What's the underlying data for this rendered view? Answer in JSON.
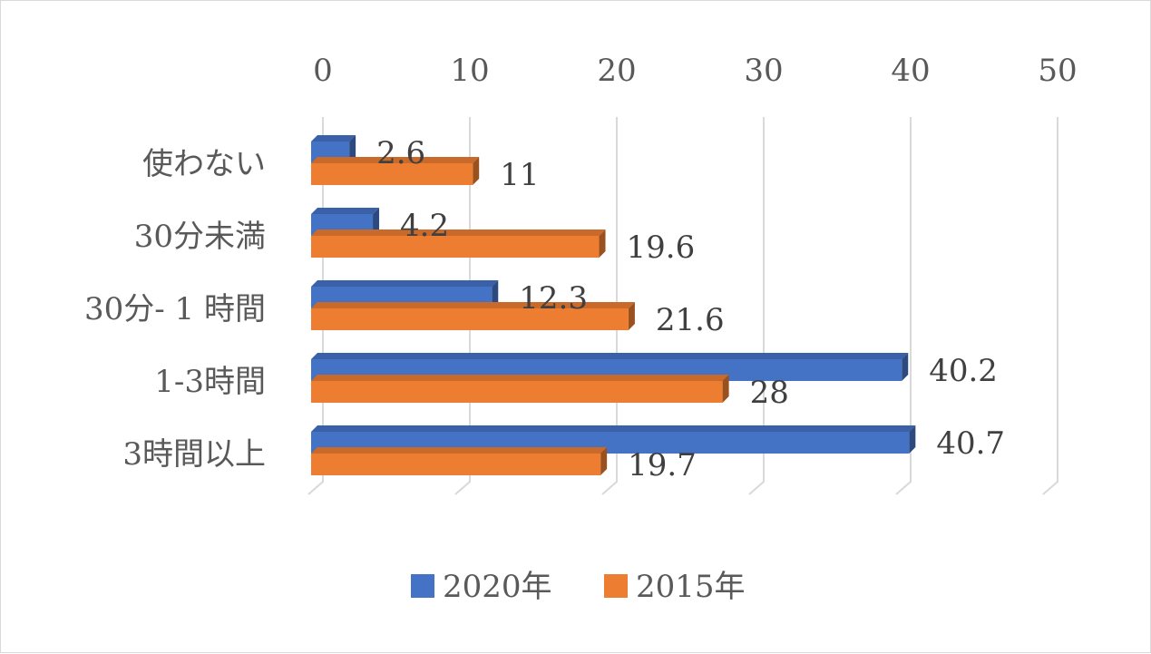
{
  "chart_data": {
    "type": "bar",
    "orientation": "horizontal",
    "categories": [
      "使わない",
      "30分未満",
      "30分- 1 時間",
      "1-3時間",
      "3時間以上"
    ],
    "series": [
      {
        "name": "2020年",
        "values": [
          2.6,
          4.2,
          12.3,
          40.2,
          40.7
        ],
        "color": "#4472c4"
      },
      {
        "name": "2015年",
        "values": [
          11,
          19.6,
          21.6,
          28,
          19.7
        ],
        "color": "#ed7d31"
      }
    ],
    "value_labels": {
      "2020年": [
        "2.6",
        "4.2",
        "12.3",
        "40.2",
        "40.7"
      ],
      "2015年": [
        "11",
        "19.6",
        "21.6",
        "28",
        "19.7"
      ]
    },
    "xlim": [
      0,
      50
    ],
    "xticks": [
      0,
      10,
      20,
      30,
      40,
      50
    ],
    "x_axis_position": "top",
    "grid": true,
    "legend_position": "bottom",
    "title": "",
    "xlabel": "",
    "ylabel": ""
  }
}
